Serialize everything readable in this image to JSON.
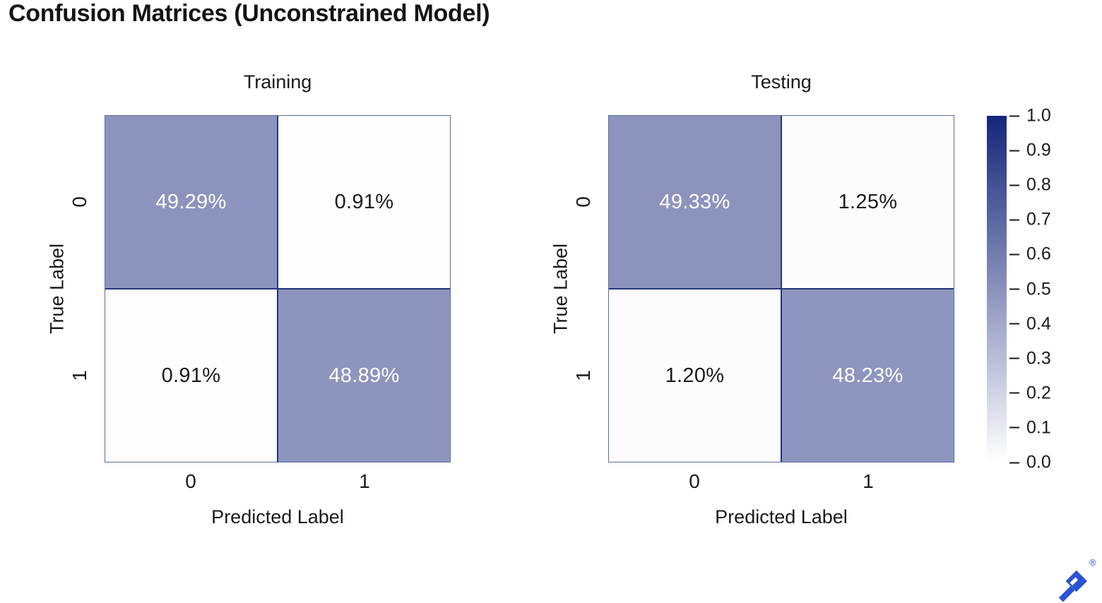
{
  "page_title": "Confusion Matrices (Unconstrained Model)",
  "colors": {
    "background": "#ffffff",
    "title_text": "#141414",
    "axis_text": "#1a1a1a",
    "cell_text_on_dark": "#ffffff",
    "cell_text_on_light": "#1c1c1c",
    "grid_line": "#243579",
    "outer_border": "#5d6da3",
    "cmap_low": "#ffffff",
    "cmap_high": "#15267a",
    "tick_mark": "#1a1a1a",
    "logo_blue": "#2b53d6"
  },
  "chart_data": [
    {
      "type": "heatmap",
      "title": "Training",
      "xlabel": "Predicted Label",
      "ylabel": "True Label",
      "x_ticklabels": [
        "0",
        "1"
      ],
      "y_ticklabels": [
        "0",
        "1"
      ],
      "values": [
        [
          0.4929,
          0.0091
        ],
        [
          0.0091,
          0.4889
        ]
      ],
      "cell_labels": [
        [
          "49.29%",
          "0.91%"
        ],
        [
          "0.91%",
          "48.89%"
        ]
      ],
      "vmin": 0.0,
      "vmax": 1.0,
      "legend_position": "shared-colorbar-right"
    },
    {
      "type": "heatmap",
      "title": "Testing",
      "xlabel": "Predicted Label",
      "ylabel": "True Label",
      "x_ticklabels": [
        "0",
        "1"
      ],
      "y_ticklabels": [
        "0",
        "1"
      ],
      "values": [
        [
          0.4933,
          0.0125
        ],
        [
          0.012,
          0.4823
        ]
      ],
      "cell_labels": [
        [
          "49.33%",
          "1.25%"
        ],
        [
          "1.20%",
          "48.23%"
        ]
      ],
      "vmin": 0.0,
      "vmax": 1.0,
      "legend_position": "shared-colorbar-right"
    }
  ],
  "colorbar": {
    "min": 0.0,
    "max": 1.0,
    "tick_labels": [
      "1.0",
      "0.9",
      "0.8",
      "0.7",
      "0.6",
      "0.5",
      "0.4",
      "0.3",
      "0.2",
      "0.1",
      "0.0"
    ]
  },
  "logo": {
    "name": "toptal-logo",
    "registered_mark": "®"
  }
}
